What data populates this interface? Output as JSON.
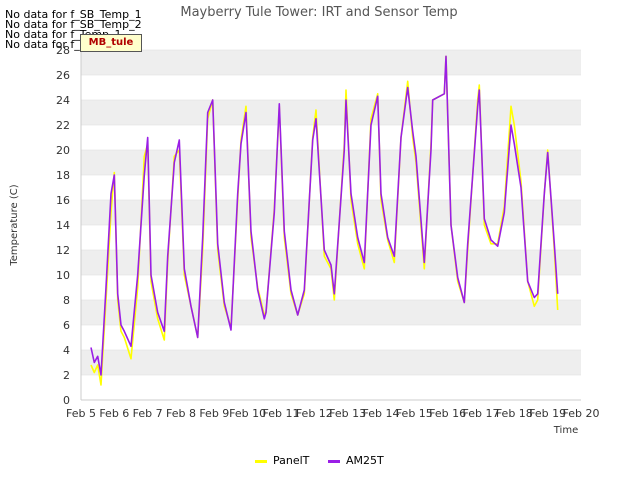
{
  "no_data_messages": [
    "No data for f_SB_Temp_1",
    "No data for f_SB_Temp_2",
    "No data for f_Temp_1",
    "No data for f_Temp_2"
  ],
  "tag_label": "MB_tule",
  "colors": {
    "PanelT": "#ffff00",
    "AM25T": "#9a1ee6",
    "band": "#eeeeee",
    "grid": "#dddddd"
  },
  "chart_data": {
    "type": "line",
    "title": "Mayberry Tule Tower: IRT and Sensor Temp",
    "xlabel": "Time",
    "ylabel": "Temperature (C)",
    "xlim": [
      5,
      20
    ],
    "ylim": [
      0,
      28
    ],
    "x_ticks": [
      5,
      6,
      7,
      8,
      9,
      10,
      11,
      12,
      13,
      14,
      15,
      16,
      17,
      18,
      19,
      20
    ],
    "x_tick_labels": [
      "Feb 5",
      "Feb 6",
      "Feb 7",
      "Feb 8",
      "Feb 9",
      "Feb 10",
      "Feb 11",
      "Feb 12",
      "Feb 13",
      "Feb 14",
      "Feb 15",
      "Feb 16",
      "Feb 17",
      "Feb 18",
      "Feb 19",
      "Feb 20"
    ],
    "y_ticks": [
      0,
      2,
      4,
      6,
      8,
      10,
      12,
      14,
      16,
      18,
      20,
      22,
      24,
      26,
      28
    ],
    "y_tick_labels": [
      "0",
      "2",
      "4",
      "6",
      "8",
      "10",
      "12",
      "14",
      "16",
      "18",
      "20",
      "22",
      "24",
      "26",
      "28"
    ],
    "legend_position": "bottom-center",
    "series": [
      {
        "name": "PanelT",
        "x": [
          5.3,
          5.4,
          5.5,
          5.6,
          5.75,
          5.9,
          6.0,
          6.1,
          6.2,
          6.3,
          6.5,
          6.7,
          6.9,
          7.0,
          7.1,
          7.3,
          7.5,
          7.6,
          7.8,
          7.95,
          8.1,
          8.3,
          8.5,
          8.65,
          8.8,
          8.95,
          9.1,
          9.3,
          9.5,
          9.7,
          9.8,
          9.95,
          10.1,
          10.3,
          10.5,
          10.55,
          10.8,
          10.95,
          11.1,
          11.3,
          11.5,
          11.7,
          11.95,
          12.05,
          12.3,
          12.5,
          12.6,
          12.9,
          12.95,
          13.1,
          13.3,
          13.5,
          13.7,
          13.9,
          14.0,
          14.2,
          14.4,
          14.6,
          14.8,
          14.95,
          15.05,
          15.3,
          15.5,
          15.55,
          15.9,
          15.95,
          16.1,
          16.3,
          16.5,
          16.6,
          16.9,
          16.95,
          17.1,
          17.3,
          17.5,
          17.7,
          17.9,
          18.0,
          18.2,
          18.4,
          18.6,
          18.7,
          18.9,
          19.0,
          19.2,
          19.3
        ],
        "y": [
          2.8,
          2.2,
          2.8,
          1.2,
          8.0,
          15.0,
          18.2,
          8.0,
          5.5,
          5.0,
          3.3,
          9.0,
          19.5,
          20.5,
          9.5,
          6.5,
          4.8,
          11.0,
          19.5,
          20.0,
          10.0,
          7.5,
          5.0,
          12.0,
          22.5,
          24.0,
          12.0,
          7.5,
          5.8,
          16.0,
          20.8,
          23.5,
          13.0,
          9.0,
          6.8,
          7.0,
          15.3,
          23.5,
          13.0,
          8.5,
          6.8,
          8.5,
          21.0,
          23.2,
          11.5,
          10.5,
          8.0,
          20.5,
          24.8,
          16.0,
          12.5,
          10.5,
          22.5,
          24.5,
          16.0,
          12.8,
          11.0,
          21.0,
          25.5,
          21.0,
          19.0,
          10.5,
          20.5,
          24.0,
          24.5,
          27.5,
          14.0,
          9.5,
          7.8,
          12.0,
          24.0,
          25.2,
          14.0,
          12.5,
          12.5,
          15.5,
          23.5,
          22.0,
          17.5,
          9.5,
          7.5,
          8.0,
          16.5,
          20.0,
          12.0,
          7.2
        ]
      },
      {
        "name": "AM25T",
        "x": [
          5.3,
          5.4,
          5.5,
          5.6,
          5.75,
          5.9,
          6.0,
          6.1,
          6.2,
          6.3,
          6.5,
          6.7,
          6.9,
          7.0,
          7.1,
          7.3,
          7.5,
          7.6,
          7.8,
          7.95,
          8.1,
          8.3,
          8.5,
          8.65,
          8.8,
          8.95,
          9.1,
          9.3,
          9.5,
          9.7,
          9.8,
          9.95,
          10.1,
          10.3,
          10.5,
          10.55,
          10.8,
          10.95,
          11.1,
          11.3,
          11.5,
          11.7,
          11.95,
          12.05,
          12.3,
          12.5,
          12.6,
          12.9,
          12.95,
          13.1,
          13.3,
          13.5,
          13.7,
          13.9,
          14.0,
          14.2,
          14.4,
          14.6,
          14.8,
          14.95,
          15.05,
          15.3,
          15.5,
          15.55,
          15.9,
          15.95,
          16.1,
          16.3,
          16.5,
          16.6,
          16.9,
          16.95,
          17.1,
          17.3,
          17.5,
          17.7,
          17.9,
          18.0,
          18.2,
          18.4,
          18.6,
          18.7,
          18.9,
          19.0,
          19.2,
          19.3
        ],
        "y": [
          4.2,
          3.0,
          3.5,
          2.0,
          9.0,
          16.5,
          18.0,
          8.5,
          6.0,
          5.5,
          4.3,
          10.0,
          18.0,
          21.0,
          10.0,
          7.0,
          5.5,
          11.5,
          19.0,
          20.8,
          10.5,
          7.5,
          5.0,
          13.0,
          23.0,
          24.0,
          12.5,
          7.8,
          5.6,
          16.5,
          20.5,
          23.0,
          13.5,
          8.8,
          6.5,
          7.0,
          15.0,
          23.7,
          13.5,
          8.8,
          6.8,
          8.8,
          20.8,
          22.5,
          12.0,
          10.8,
          8.5,
          20.0,
          24.0,
          16.5,
          13.0,
          11.0,
          22.0,
          24.3,
          16.5,
          13.0,
          11.5,
          21.0,
          25.0,
          21.5,
          19.5,
          11.0,
          20.0,
          24.0,
          24.5,
          27.5,
          14.0,
          9.8,
          7.8,
          12.5,
          23.5,
          24.8,
          14.5,
          12.8,
          12.3,
          15.0,
          22.0,
          20.5,
          17.0,
          9.5,
          8.2,
          8.5,
          16.5,
          19.8,
          12.5,
          8.5
        ]
      }
    ]
  }
}
